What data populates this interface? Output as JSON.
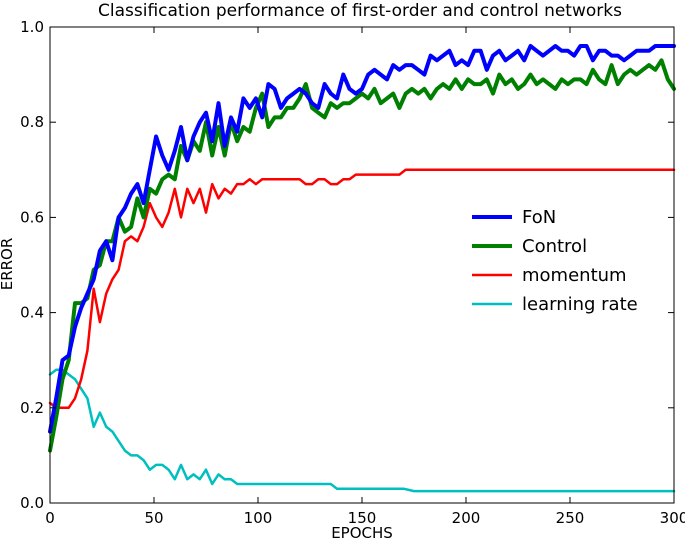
{
  "chart_data": {
    "type": "line",
    "title": "Classification performance of first-order and control networks",
    "xlabel": "EPOCHS",
    "ylabel": "ERROR",
    "xlim": [
      0,
      300
    ],
    "ylim": [
      0,
      1.0
    ],
    "xticks": [
      "0",
      "50",
      "100",
      "150",
      "200",
      "250",
      "300"
    ],
    "yticks": [
      "0.0",
      "0.2",
      "0.4",
      "0.6",
      "0.8",
      "1.0"
    ],
    "grid": false,
    "legend_position": "center-right",
    "series": [
      {
        "name": "FoN",
        "color": "#0000ff",
        "x": [
          0,
          3,
          6,
          9,
          12,
          15,
          18,
          21,
          24,
          27,
          30,
          33,
          36,
          39,
          42,
          45,
          48,
          51,
          54,
          57,
          60,
          63,
          66,
          69,
          72,
          75,
          78,
          81,
          84,
          87,
          90,
          93,
          96,
          99,
          102,
          105,
          108,
          111,
          114,
          117,
          120,
          123,
          126,
          129,
          132,
          135,
          138,
          141,
          144,
          147,
          150,
          153,
          156,
          159,
          162,
          165,
          168,
          171,
          174,
          177,
          180,
          183,
          186,
          189,
          192,
          195,
          198,
          201,
          204,
          207,
          210,
          213,
          216,
          219,
          222,
          225,
          228,
          231,
          234,
          237,
          240,
          243,
          246,
          249,
          252,
          255,
          258,
          261,
          264,
          267,
          270,
          273,
          276,
          279,
          282,
          285,
          288,
          291,
          294,
          297,
          300
        ],
        "y": [
          0.15,
          0.22,
          0.3,
          0.31,
          0.37,
          0.41,
          0.44,
          0.47,
          0.53,
          0.55,
          0.51,
          0.6,
          0.62,
          0.65,
          0.67,
          0.63,
          0.7,
          0.77,
          0.73,
          0.7,
          0.74,
          0.79,
          0.72,
          0.77,
          0.8,
          0.82,
          0.76,
          0.84,
          0.75,
          0.81,
          0.78,
          0.85,
          0.83,
          0.85,
          0.81,
          0.88,
          0.87,
          0.83,
          0.85,
          0.86,
          0.87,
          0.86,
          0.84,
          0.83,
          0.88,
          0.86,
          0.85,
          0.9,
          0.87,
          0.86,
          0.87,
          0.9,
          0.91,
          0.9,
          0.89,
          0.92,
          0.91,
          0.92,
          0.92,
          0.91,
          0.9,
          0.94,
          0.93,
          0.94,
          0.95,
          0.92,
          0.93,
          0.92,
          0.95,
          0.95,
          0.91,
          0.94,
          0.95,
          0.93,
          0.94,
          0.95,
          0.93,
          0.96,
          0.95,
          0.94,
          0.95,
          0.96,
          0.95,
          0.95,
          0.94,
          0.96,
          0.96,
          0.93,
          0.95,
          0.95,
          0.94,
          0.94,
          0.93,
          0.94,
          0.95,
          0.95,
          0.95,
          0.96,
          0.96,
          0.96,
          0.96
        ]
      },
      {
        "name": "Control",
        "color": "#008000",
        "x": [
          0,
          3,
          6,
          9,
          12,
          15,
          18,
          21,
          24,
          27,
          30,
          33,
          36,
          39,
          42,
          45,
          48,
          51,
          54,
          57,
          60,
          63,
          66,
          69,
          72,
          75,
          78,
          81,
          84,
          87,
          90,
          93,
          96,
          99,
          102,
          105,
          108,
          111,
          114,
          117,
          120,
          123,
          126,
          129,
          132,
          135,
          138,
          141,
          144,
          147,
          150,
          153,
          156,
          159,
          162,
          165,
          168,
          171,
          174,
          177,
          180,
          183,
          186,
          189,
          192,
          195,
          198,
          201,
          204,
          207,
          210,
          213,
          216,
          219,
          222,
          225,
          228,
          231,
          234,
          237,
          240,
          243,
          246,
          249,
          252,
          255,
          258,
          261,
          264,
          267,
          270,
          273,
          276,
          279,
          282,
          285,
          288,
          291,
          294,
          297,
          300
        ],
        "y": [
          0.11,
          0.18,
          0.26,
          0.3,
          0.42,
          0.42,
          0.43,
          0.49,
          0.5,
          0.55,
          0.55,
          0.6,
          0.57,
          0.58,
          0.64,
          0.6,
          0.66,
          0.65,
          0.68,
          0.69,
          0.68,
          0.75,
          0.72,
          0.76,
          0.74,
          0.8,
          0.73,
          0.79,
          0.73,
          0.8,
          0.76,
          0.79,
          0.78,
          0.83,
          0.86,
          0.79,
          0.81,
          0.81,
          0.83,
          0.83,
          0.85,
          0.88,
          0.83,
          0.82,
          0.81,
          0.84,
          0.83,
          0.84,
          0.84,
          0.85,
          0.86,
          0.85,
          0.87,
          0.84,
          0.85,
          0.86,
          0.83,
          0.86,
          0.87,
          0.86,
          0.87,
          0.85,
          0.87,
          0.88,
          0.87,
          0.89,
          0.87,
          0.89,
          0.88,
          0.88,
          0.89,
          0.86,
          0.9,
          0.88,
          0.89,
          0.87,
          0.88,
          0.9,
          0.88,
          0.89,
          0.88,
          0.87,
          0.89,
          0.88,
          0.89,
          0.89,
          0.88,
          0.91,
          0.89,
          0.88,
          0.92,
          0.88,
          0.9,
          0.91,
          0.9,
          0.91,
          0.92,
          0.91,
          0.93,
          0.89,
          0.87
        ]
      },
      {
        "name": "momentum",
        "color": "#ff0000",
        "x": [
          0,
          3,
          6,
          9,
          12,
          15,
          18,
          21,
          24,
          27,
          30,
          33,
          36,
          39,
          42,
          45,
          48,
          51,
          54,
          57,
          60,
          63,
          66,
          69,
          72,
          75,
          78,
          81,
          84,
          87,
          90,
          93,
          96,
          99,
          102,
          105,
          108,
          111,
          114,
          117,
          120,
          123,
          126,
          129,
          132,
          135,
          138,
          141,
          144,
          147,
          150,
          153,
          156,
          159,
          162,
          165,
          168,
          171,
          174,
          177,
          180,
          185,
          190,
          195,
          200,
          210,
          220,
          230,
          240,
          250,
          260,
          270,
          280,
          290,
          300
        ],
        "y": [
          0.21,
          0.2,
          0.2,
          0.2,
          0.22,
          0.26,
          0.32,
          0.45,
          0.38,
          0.44,
          0.47,
          0.49,
          0.55,
          0.56,
          0.55,
          0.58,
          0.63,
          0.6,
          0.58,
          0.61,
          0.66,
          0.6,
          0.66,
          0.63,
          0.66,
          0.61,
          0.67,
          0.64,
          0.66,
          0.65,
          0.67,
          0.67,
          0.68,
          0.67,
          0.68,
          0.68,
          0.68,
          0.68,
          0.68,
          0.68,
          0.68,
          0.67,
          0.67,
          0.68,
          0.68,
          0.67,
          0.67,
          0.68,
          0.68,
          0.69,
          0.69,
          0.69,
          0.69,
          0.69,
          0.69,
          0.69,
          0.69,
          0.7,
          0.7,
          0.7,
          0.7,
          0.7,
          0.7,
          0.7,
          0.7,
          0.7,
          0.7,
          0.7,
          0.7,
          0.7,
          0.7,
          0.7,
          0.7,
          0.7,
          0.7
        ]
      },
      {
        "name": "learning rate",
        "color": "#00bfbf",
        "x": [
          0,
          3,
          6,
          9,
          12,
          15,
          18,
          21,
          24,
          27,
          30,
          33,
          36,
          39,
          42,
          45,
          48,
          51,
          54,
          57,
          60,
          63,
          66,
          69,
          72,
          75,
          78,
          81,
          84,
          87,
          90,
          93,
          96,
          99,
          102,
          105,
          108,
          111,
          114,
          117,
          120,
          123,
          126,
          129,
          132,
          135,
          138,
          141,
          144,
          147,
          150,
          155,
          160,
          165,
          170,
          175,
          180,
          190,
          200,
          210,
          220,
          230,
          240,
          250,
          260,
          270,
          280,
          290,
          300
        ],
        "y": [
          0.27,
          0.28,
          0.28,
          0.27,
          0.26,
          0.24,
          0.22,
          0.16,
          0.19,
          0.16,
          0.15,
          0.13,
          0.11,
          0.1,
          0.1,
          0.09,
          0.07,
          0.08,
          0.08,
          0.07,
          0.05,
          0.08,
          0.05,
          0.06,
          0.05,
          0.07,
          0.04,
          0.06,
          0.05,
          0.05,
          0.04,
          0.04,
          0.04,
          0.04,
          0.04,
          0.04,
          0.04,
          0.04,
          0.04,
          0.04,
          0.04,
          0.04,
          0.04,
          0.04,
          0.04,
          0.04,
          0.03,
          0.03,
          0.03,
          0.03,
          0.03,
          0.03,
          0.03,
          0.03,
          0.03,
          0.025,
          0.025,
          0.025,
          0.025,
          0.025,
          0.025,
          0.025,
          0.025,
          0.025,
          0.025,
          0.025,
          0.025,
          0.025,
          0.025
        ]
      }
    ]
  }
}
